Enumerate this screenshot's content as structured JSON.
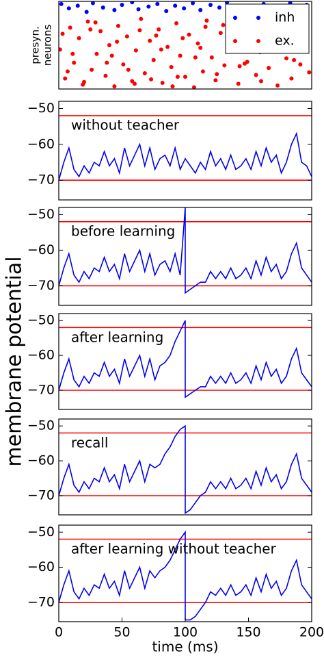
{
  "chart_data": [
    {
      "type": "scatter",
      "ylabel": [
        "presyn.",
        "neurons"
      ],
      "xlim": [
        0,
        200
      ],
      "ylim": [
        0,
        100
      ],
      "legend": "upper right",
      "series": [
        {
          "name": "inh",
          "color": "#0000ff",
          "x": [
            2,
            8,
            15,
            22,
            27,
            35,
            44,
            50,
            58,
            63,
            71,
            78,
            85,
            92,
            99,
            106,
            112,
            120,
            127,
            133,
            140,
            148,
            155,
            162,
            170,
            176,
            183,
            190,
            196,
            153
          ],
          "y": [
            97,
            92,
            95,
            88,
            98,
            93,
            90,
            96,
            99,
            91,
            94,
            97,
            89,
            95,
            92,
            98,
            90,
            96,
            93,
            99,
            91,
            95,
            88,
            97,
            94,
            90,
            98,
            92,
            96,
            86
          ]
        },
        {
          "name": "ex.",
          "color": "#ff0000",
          "x": [
            1,
            5,
            9,
            12,
            16,
            19,
            23,
            26,
            30,
            33,
            37,
            40,
            44,
            47,
            51,
            54,
            58,
            61,
            65,
            68,
            72,
            75,
            79,
            82,
            86,
            89,
            93,
            96,
            100,
            103,
            107,
            110,
            114,
            117,
            121,
            124,
            128,
            131,
            135,
            138,
            142,
            145,
            149,
            152,
            156,
            159,
            163,
            166,
            170,
            173,
            177,
            180,
            184,
            187,
            191,
            194,
            198,
            3,
            11,
            20,
            29,
            38,
            46,
            55,
            64,
            73,
            81,
            90,
            98,
            108,
            116,
            125,
            134,
            143,
            151,
            160,
            168,
            178,
            186,
            195,
            7,
            25,
            42,
            60,
            77,
            94,
            112,
            130,
            147,
            165
          ],
          "y": [
            45,
            12,
            70,
            30,
            58,
            5,
            77,
            22,
            40,
            66,
            15,
            50,
            3,
            72,
            28,
            60,
            9,
            44,
            80,
            18,
            55,
            33,
            68,
            7,
            48,
            25,
            75,
            38,
            14,
            62,
            2,
            52,
            20,
            78,
            36,
            10,
            64,
            27,
            46,
            74,
            6,
            57,
            31,
            70,
            16,
            42,
            65,
            24,
            50,
            4,
            73,
            35,
            12,
            60,
            28,
            79,
            19,
            63,
            40,
            8,
            76,
            30,
            54,
            22,
            67,
            11,
            45,
            3,
            58,
            36,
            71,
            17,
            49,
            26,
            62,
            9,
            43,
            76,
            33,
            55,
            20,
            68,
            38,
            6,
            61,
            14,
            47,
            73,
            29,
            52
          ]
        }
      ]
    },
    {
      "type": "line",
      "annotation": "without teacher",
      "ylabel": "membrane potential",
      "xlim": [
        0,
        200
      ],
      "ylim": [
        -75.5,
        -48
      ],
      "yticks": [
        {
          "value": -50,
          "label": "−50"
        },
        {
          "value": -60,
          "label": "−60"
        },
        {
          "value": -70,
          "label": "−70"
        }
      ],
      "hlines": [
        -52,
        -70
      ],
      "hline_color": "#ff0000",
      "x": [
        0,
        4,
        8,
        12,
        16,
        20,
        24,
        28,
        32,
        36,
        40,
        44,
        48,
        52,
        56,
        60,
        64,
        68,
        72,
        76,
        80,
        84,
        88,
        92,
        96,
        100,
        100,
        104,
        108,
        112,
        116,
        120,
        124,
        128,
        132,
        136,
        140,
        144,
        148,
        152,
        156,
        160,
        164,
        168,
        172,
        176,
        180,
        184,
        188,
        192,
        196,
        200
      ],
      "series": [
        {
          "color": "#0000ee",
          "values": [
            -70,
            -65,
            -61,
            -67,
            -69,
            -66,
            -68,
            -65,
            -66,
            -62,
            -66,
            -64,
            -68,
            -61,
            -66,
            -63,
            -60,
            -66,
            -61,
            -67,
            -64,
            -63,
            -66,
            -61,
            -67,
            -64,
            -64,
            -66,
            -68,
            -65,
            -67,
            -62,
            -66,
            -64,
            -67,
            -63,
            -67,
            -66,
            -64,
            -67,
            -62,
            -66,
            -61,
            -65,
            -63,
            -68,
            -65,
            -60,
            -57,
            -65,
            -66,
            -69
          ]
        }
      ]
    },
    {
      "type": "line",
      "annotation": "before learning",
      "xlim": [
        0,
        200
      ],
      "ylim": [
        -75.5,
        -48
      ],
      "yticks": [
        {
          "value": -50,
          "label": "−50"
        },
        {
          "value": -60,
          "label": "−60"
        },
        {
          "value": -70,
          "label": "−70"
        }
      ],
      "hlines": [
        -52,
        -70
      ],
      "hline_color": "#ff0000",
      "x": [
        0,
        4,
        8,
        12,
        16,
        20,
        24,
        28,
        32,
        36,
        40,
        44,
        48,
        52,
        56,
        60,
        64,
        68,
        72,
        76,
        80,
        84,
        88,
        92,
        96,
        100,
        100,
        104,
        108,
        112,
        116,
        120,
        124,
        128,
        132,
        136,
        140,
        144,
        148,
        152,
        156,
        160,
        164,
        168,
        172,
        176,
        180,
        184,
        188,
        192,
        196,
        200
      ],
      "series": [
        {
          "color": "#0000ee",
          "values": [
            -70,
            -65,
            -61,
            -67,
            -69,
            -66,
            -68,
            -65,
            -66,
            -62,
            -66,
            -64,
            -68,
            -61,
            -66,
            -63,
            -60,
            -66,
            -61,
            -67,
            -64,
            -63,
            -66,
            -61,
            -67,
            -48,
            -72,
            -71,
            -70,
            -69,
            -69,
            -66,
            -68,
            -66,
            -68,
            -65,
            -68,
            -67,
            -65,
            -68,
            -63,
            -67,
            -62,
            -66,
            -64,
            -68,
            -66,
            -61,
            -58,
            -65,
            -67,
            -69
          ]
        }
      ]
    },
    {
      "type": "line",
      "annotation": "after learning",
      "xlim": [
        0,
        200
      ],
      "ylim": [
        -75.5,
        -48
      ],
      "yticks": [
        {
          "value": -50,
          "label": "−50"
        },
        {
          "value": -60,
          "label": "−60"
        },
        {
          "value": -70,
          "label": "−70"
        }
      ],
      "hlines": [
        -52,
        -70
      ],
      "hline_color": "#ff0000",
      "x": [
        0,
        4,
        8,
        12,
        16,
        20,
        24,
        28,
        32,
        36,
        40,
        44,
        48,
        52,
        56,
        60,
        64,
        68,
        72,
        76,
        80,
        84,
        88,
        92,
        96,
        100,
        100,
        104,
        108,
        112,
        116,
        120,
        124,
        128,
        132,
        136,
        140,
        144,
        148,
        152,
        156,
        160,
        164,
        168,
        172,
        176,
        180,
        184,
        188,
        192,
        196,
        200
      ],
      "series": [
        {
          "color": "#0000ee",
          "values": [
            -70,
            -65,
            -61,
            -67,
            -69,
            -66,
            -68,
            -65,
            -66,
            -62,
            -66,
            -64,
            -68,
            -61,
            -66,
            -63,
            -60,
            -66,
            -61,
            -67,
            -63,
            -62,
            -60,
            -56,
            -53,
            -50,
            -72,
            -71,
            -70,
            -69,
            -69,
            -66,
            -68,
            -66,
            -68,
            -65,
            -68,
            -67,
            -65,
            -68,
            -63,
            -67,
            -62,
            -66,
            -64,
            -68,
            -66,
            -61,
            -58,
            -65,
            -67,
            -69
          ]
        }
      ]
    },
    {
      "type": "line",
      "annotation": "recall",
      "xlim": [
        0,
        200
      ],
      "ylim": [
        -75.5,
        -48
      ],
      "yticks": [
        {
          "value": -50,
          "label": "−50"
        },
        {
          "value": -60,
          "label": "−60"
        },
        {
          "value": -70,
          "label": "−70"
        }
      ],
      "hlines": [
        -52,
        -70
      ],
      "hline_color": "#ff0000",
      "x": [
        0,
        4,
        8,
        12,
        16,
        20,
        24,
        28,
        32,
        36,
        40,
        44,
        48,
        52,
        56,
        60,
        64,
        68,
        72,
        76,
        80,
        84,
        88,
        92,
        96,
        100,
        100,
        104,
        108,
        112,
        116,
        120,
        124,
        128,
        132,
        136,
        140,
        144,
        148,
        152,
        156,
        160,
        164,
        168,
        172,
        176,
        180,
        184,
        188,
        192,
        196,
        200
      ],
      "series": [
        {
          "color": "#0000ee",
          "values": [
            -70,
            -65,
            -61,
            -67,
            -69,
            -66,
            -68,
            -65,
            -66,
            -62,
            -66,
            -64,
            -68,
            -61,
            -66,
            -63,
            -60,
            -66,
            -61,
            -62,
            -61,
            -58,
            -56,
            -53,
            -51,
            -50,
            -75,
            -74,
            -72,
            -70,
            -69,
            -66,
            -68,
            -66,
            -68,
            -65,
            -68,
            -67,
            -65,
            -68,
            -63,
            -67,
            -62,
            -66,
            -64,
            -68,
            -66,
            -61,
            -58,
            -65,
            -67,
            -69
          ]
        }
      ]
    },
    {
      "type": "line",
      "annotation": "after learning without teacher",
      "xlabel": "time (ms)",
      "xlim": [
        0,
        200
      ],
      "ylim": [
        -75.5,
        -48
      ],
      "xticks": [
        0,
        50,
        100,
        150,
        200
      ],
      "yticks": [
        {
          "value": -50,
          "label": "−50"
        },
        {
          "value": -60,
          "label": "−60"
        },
        {
          "value": -70,
          "label": "−70"
        }
      ],
      "hlines": [
        -52,
        -70
      ],
      "hline_color": "#ff0000",
      "x": [
        0,
        4,
        8,
        12,
        16,
        20,
        24,
        28,
        32,
        36,
        40,
        44,
        48,
        52,
        56,
        60,
        64,
        68,
        72,
        76,
        80,
        84,
        88,
        92,
        96,
        100,
        100,
        104,
        108,
        112,
        116,
        120,
        124,
        128,
        132,
        136,
        140,
        144,
        148,
        152,
        156,
        160,
        164,
        168,
        172,
        176,
        180,
        184,
        188,
        192,
        196,
        200
      ],
      "series": [
        {
          "color": "#0000ee",
          "values": [
            -70,
            -65,
            -61,
            -67,
            -69,
            -66,
            -68,
            -65,
            -66,
            -62,
            -66,
            -64,
            -68,
            -61,
            -66,
            -63,
            -60,
            -66,
            -61,
            -63,
            -61,
            -60,
            -58,
            -55,
            -52,
            -50,
            -75,
            -75,
            -74,
            -72,
            -70,
            -67,
            -68,
            -66,
            -68,
            -65,
            -68,
            -67,
            -65,
            -68,
            -63,
            -67,
            -62,
            -66,
            -64,
            -68,
            -66,
            -61,
            -58,
            -65,
            -67,
            -69
          ]
        }
      ]
    }
  ]
}
